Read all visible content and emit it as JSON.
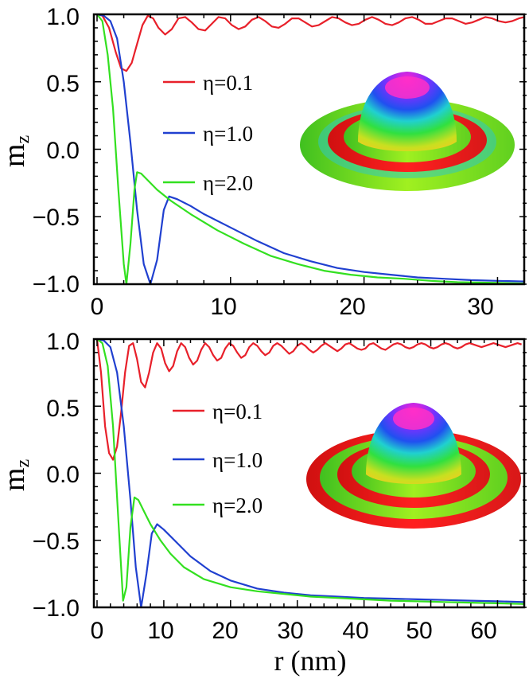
{
  "chart_data": [
    {
      "type": "line",
      "panel": "top",
      "ylabel": "m",
      "ylabel_sub": "z",
      "xlabel": "",
      "xlim": [
        0,
        32
      ],
      "ylim": [
        -1.0,
        1.0
      ],
      "xticks": [
        "0",
        "10",
        "20",
        "30"
      ],
      "yticks": [
        "1.0",
        "0.5",
        "0.0",
        "−0.5",
        "−1.0"
      ],
      "inset": "3D skyrmion spin-texture rendering",
      "series": [
        {
          "name": "η=0.1",
          "color": "#e8202a",
          "x": [
            0,
            0.4,
            0.9,
            1.4,
            1.8,
            2.2,
            2.6,
            3.0,
            3.4,
            3.8,
            4.2,
            4.6,
            5.1,
            5.6,
            6.1,
            6.6,
            7.1,
            7.6,
            8.1,
            8.6,
            9.1,
            9.6,
            10.1,
            10.6,
            11.1,
            11.6,
            12.1,
            12.6,
            13.1,
            13.6,
            14.1,
            14.6,
            15.1,
            15.6,
            16.1,
            16.6,
            17.1,
            17.6,
            18.1,
            18.6,
            19.1,
            19.6,
            20.1,
            20.6,
            21.1,
            21.6,
            22.1,
            22.6,
            23.1,
            23.6,
            24.1,
            24.6,
            25.1,
            25.6,
            26.1,
            26.6,
            27.1,
            27.6,
            28.1,
            28.6,
            29.1,
            29.6,
            30.1,
            30.6,
            31.1,
            31.6,
            32.0
          ],
          "y": [
            1.0,
            0.99,
            0.9,
            0.72,
            0.6,
            0.58,
            0.64,
            0.78,
            0.92,
            0.99,
            0.97,
            0.9,
            0.85,
            0.89,
            0.97,
            0.98,
            0.94,
            0.89,
            0.88,
            0.93,
            0.98,
            0.97,
            0.92,
            0.89,
            0.91,
            0.96,
            0.98,
            0.95,
            0.91,
            0.9,
            0.93,
            0.97,
            0.97,
            0.94,
            0.91,
            0.92,
            0.95,
            0.98,
            0.97,
            0.94,
            0.92,
            0.93,
            0.96,
            0.98,
            0.96,
            0.93,
            0.92,
            0.94,
            0.97,
            0.98,
            0.96,
            0.93,
            0.93,
            0.95,
            0.97,
            0.97,
            0.95,
            0.93,
            0.94,
            0.96,
            0.98,
            0.97,
            0.95,
            0.94,
            0.95,
            0.97,
            0.98
          ]
        },
        {
          "name": "η=1.0",
          "color": "#2040d0",
          "x": [
            0,
            0.5,
            1.0,
            1.5,
            2.0,
            2.5,
            3.0,
            3.5,
            4.0,
            4.5,
            5.0,
            5.4,
            6,
            7,
            8,
            10,
            12,
            14,
            16,
            18,
            20,
            22,
            24,
            26,
            28,
            30,
            32
          ],
          "y": [
            1.0,
            0.99,
            0.95,
            0.82,
            0.5,
            0.05,
            -0.45,
            -0.85,
            -1.0,
            -0.82,
            -0.45,
            -0.35,
            -0.37,
            -0.42,
            -0.48,
            -0.58,
            -0.68,
            -0.77,
            -0.83,
            -0.88,
            -0.91,
            -0.93,
            -0.95,
            -0.96,
            -0.97,
            -0.975,
            -0.98
          ]
        },
        {
          "name": "η=2.0",
          "color": "#33e020",
          "x": [
            0,
            0.4,
            0.8,
            1.2,
            1.6,
            2.0,
            2.2,
            2.5,
            2.8,
            3.0,
            3.3,
            3.8,
            4.5,
            5.5,
            7,
            9,
            11,
            13,
            15,
            17,
            19,
            21,
            23,
            25,
            27,
            30,
            32
          ],
          "y": [
            1.0,
            0.95,
            0.7,
            0.3,
            -0.3,
            -0.85,
            -1.0,
            -0.7,
            -0.3,
            -0.17,
            -0.18,
            -0.23,
            -0.3,
            -0.38,
            -0.48,
            -0.6,
            -0.7,
            -0.79,
            -0.85,
            -0.9,
            -0.93,
            -0.95,
            -0.96,
            -0.975,
            -0.985,
            -0.99,
            -0.995
          ]
        }
      ]
    },
    {
      "type": "line",
      "panel": "bottom",
      "ylabel": "m",
      "ylabel_sub": "z",
      "xlabel": "r (nm)",
      "xlim": [
        0,
        64
      ],
      "ylim": [
        -1.0,
        1.0
      ],
      "xticks": [
        "0",
        "10",
        "20",
        "30",
        "40",
        "50",
        "60"
      ],
      "yticks": [
        "1.0",
        "0.5",
        "0.0",
        "−0.5",
        "−1.0"
      ],
      "inset": "3D skyrmion spin-texture rendering",
      "series": [
        {
          "name": "η=0.1",
          "color": "#e8202a",
          "x": [
            0,
            0.6,
            1.2,
            1.8,
            2.4,
            3.0,
            3.6,
            4.2,
            4.8,
            5.4,
            6.0,
            6.6,
            7.2,
            7.8,
            8.4,
            9.0,
            9.6,
            10.2,
            10.8,
            11.4,
            12.0,
            12.6,
            13.2,
            13.8,
            14.4,
            15.0,
            15.6,
            16.2,
            16.8,
            17.4,
            18.0,
            18.6,
            19.2,
            19.8,
            20.4,
            21.0,
            21.6,
            22.2,
            22.8,
            23.4,
            24.0,
            24.6,
            25.2,
            25.8,
            26.4,
            27.0,
            27.6,
            28.2,
            28.8,
            29.4,
            30.0,
            30.6,
            31.2,
            31.8,
            32.4,
            33.0,
            33.6,
            34.2,
            34.8,
            35.4,
            36.0,
            36.6,
            37.2,
            37.8,
            38.4,
            39.0,
            39.6,
            40.2,
            40.8,
            41.4,
            42.0,
            42.6,
            43.2,
            43.8,
            44.4,
            45.0,
            45.6,
            46.2,
            46.8,
            47.4,
            48.0,
            48.6,
            49.2,
            49.8,
            50.4,
            51.0,
            51.6,
            52.2,
            52.8,
            53.4,
            54.0,
            54.6,
            55.2,
            55.8,
            56.4,
            57.0,
            57.6,
            58.2,
            58.8,
            59.4,
            60.0,
            60.6,
            61.2,
            61.8,
            62.4,
            63.0,
            63.6
          ],
          "y": [
            1.0,
            0.75,
            0.35,
            0.15,
            0.1,
            0.2,
            0.45,
            0.75,
            0.95,
            0.97,
            0.85,
            0.68,
            0.64,
            0.75,
            0.9,
            0.97,
            0.93,
            0.82,
            0.76,
            0.8,
            0.91,
            0.97,
            0.94,
            0.86,
            0.81,
            0.84,
            0.92,
            0.97,
            0.94,
            0.88,
            0.84,
            0.86,
            0.93,
            0.97,
            0.95,
            0.9,
            0.86,
            0.88,
            0.94,
            0.97,
            0.95,
            0.91,
            0.88,
            0.9,
            0.95,
            0.97,
            0.95,
            0.92,
            0.89,
            0.91,
            0.95,
            0.97,
            0.95,
            0.92,
            0.9,
            0.92,
            0.95,
            0.97,
            0.95,
            0.93,
            0.91,
            0.93,
            0.96,
            0.97,
            0.95,
            0.93,
            0.92,
            0.93,
            0.96,
            0.97,
            0.95,
            0.93,
            0.92,
            0.94,
            0.96,
            0.97,
            0.96,
            0.94,
            0.93,
            0.94,
            0.96,
            0.97,
            0.96,
            0.94,
            0.93,
            0.94,
            0.96,
            0.97,
            0.96,
            0.94,
            0.93,
            0.94,
            0.96,
            0.97,
            0.96,
            0.95,
            0.94,
            0.95,
            0.96,
            0.97,
            0.96,
            0.95,
            0.94,
            0.95,
            0.96,
            0.97,
            0.96
          ]
        },
        {
          "name": "η=1.0",
          "color": "#2040d0",
          "x": [
            0,
            1,
            2,
            3,
            4,
            5,
            5.8,
            6.6,
            7.4,
            8.2,
            9.0,
            10,
            12,
            14,
            17,
            20,
            24,
            28,
            32,
            36,
            40,
            44,
            48,
            52,
            56,
            60,
            64
          ],
          "y": [
            1.0,
            0.99,
            0.94,
            0.75,
            0.35,
            -0.2,
            -0.7,
            -1.0,
            -0.75,
            -0.45,
            -0.38,
            -0.42,
            -0.52,
            -0.62,
            -0.73,
            -0.8,
            -0.86,
            -0.89,
            -0.91,
            -0.92,
            -0.93,
            -0.935,
            -0.94,
            -0.945,
            -0.95,
            -0.955,
            -0.96
          ]
        },
        {
          "name": "η=2.0",
          "color": "#33e020",
          "x": [
            0,
            0.8,
            1.6,
            2.4,
            3.2,
            3.9,
            4.4,
            5.0,
            5.6,
            6.2,
            7.0,
            8.0,
            9.5,
            11,
            13,
            16,
            20,
            24,
            28,
            32,
            36,
            40,
            44,
            48,
            52,
            56,
            60,
            64
          ],
          "y": [
            1.0,
            0.97,
            0.8,
            0.35,
            -0.35,
            -0.95,
            -0.85,
            -0.4,
            -0.18,
            -0.2,
            -0.28,
            -0.38,
            -0.5,
            -0.6,
            -0.7,
            -0.79,
            -0.85,
            -0.88,
            -0.9,
            -0.92,
            -0.93,
            -0.94,
            -0.95,
            -0.955,
            -0.96,
            -0.965,
            -0.97,
            -0.975
          ]
        }
      ]
    }
  ]
}
